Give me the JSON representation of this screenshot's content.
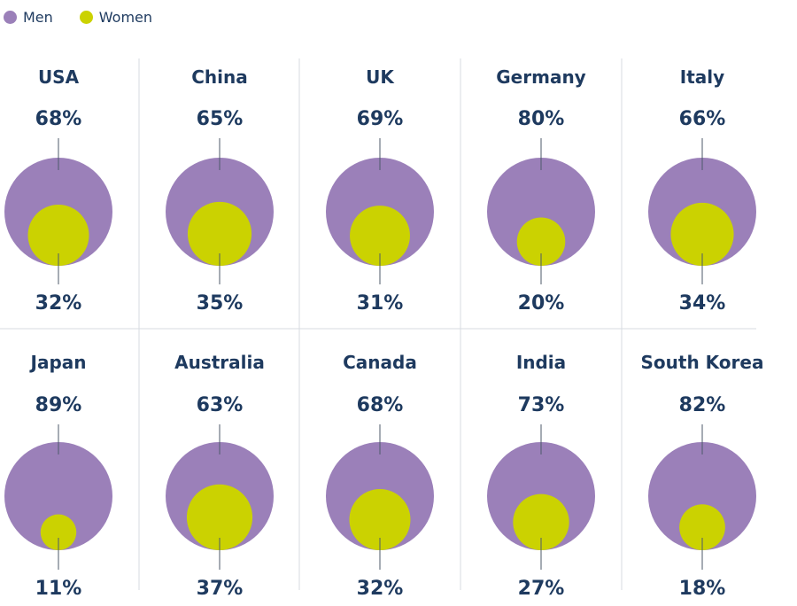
{
  "legend": {
    "men_label": "Men",
    "women_label": "Women"
  },
  "colors": {
    "men": "#9b80b9",
    "women": "#cbd201",
    "text": "#1e3a5f",
    "divider": "#d7dbe2",
    "tick": "#4d5a6a"
  },
  "chart_data": {
    "type": "proportional-area-circles",
    "title": "",
    "series": [
      {
        "name": "Men"
      },
      {
        "name": "Women"
      }
    ],
    "panels": [
      {
        "country": "USA",
        "men": 68,
        "women": 32
      },
      {
        "country": "China",
        "men": 65,
        "women": 35
      },
      {
        "country": "UK",
        "men": 69,
        "women": 31
      },
      {
        "country": "Germany",
        "men": 80,
        "women": 20
      },
      {
        "country": "Italy",
        "men": 66,
        "women": 34
      },
      {
        "country": "Japan",
        "men": 89,
        "women": 11
      },
      {
        "country": "Australia",
        "men": 63,
        "women": 37
      },
      {
        "country": "Canada",
        "men": 68,
        "women": 32
      },
      {
        "country": "India",
        "men": 73,
        "women": 27
      },
      {
        "country": "South Korea",
        "men": 82,
        "women": 18
      }
    ]
  }
}
